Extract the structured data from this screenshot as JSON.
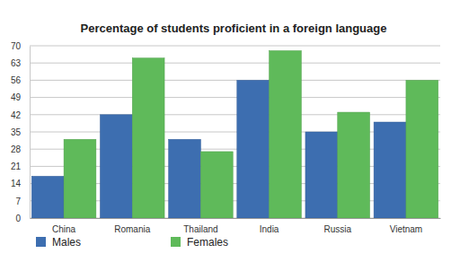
{
  "chart_data": {
    "type": "bar",
    "title": "Percentage of students proficient in a foreign language",
    "categories": [
      "China",
      "Romania",
      "Thailand",
      "India",
      "Russia",
      "Vietnam"
    ],
    "series": [
      {
        "name": "Males",
        "color": "#3d6eb0",
        "values": [
          17,
          42,
          32,
          56,
          35,
          39
        ]
      },
      {
        "name": "Females",
        "color": "#5fba5a",
        "values": [
          32,
          65,
          27,
          68,
          43,
          56
        ]
      }
    ],
    "ylim": [
      0,
      70
    ],
    "yticks": [
      0,
      7,
      14,
      21,
      28,
      35,
      42,
      49,
      56,
      63,
      70
    ],
    "grid": true,
    "legend": "bottom"
  }
}
